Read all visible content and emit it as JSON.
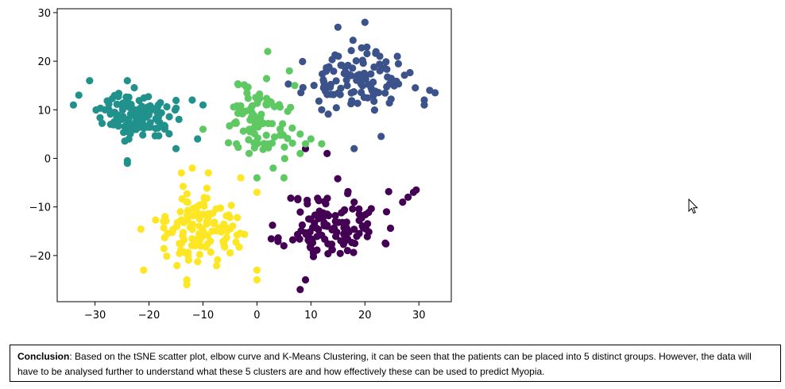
{
  "chart_data": {
    "type": "scatter",
    "title": "",
    "xlabel": "",
    "ylabel": "",
    "xlim": [
      -37,
      36
    ],
    "ylim": [
      -29.5,
      30.8
    ],
    "xticks": [
      -30,
      -20,
      -10,
      0,
      10,
      20,
      30
    ],
    "yticks": [
      -20,
      -10,
      0,
      10,
      20,
      30
    ],
    "xtick_labels": [
      "−30",
      "−20",
      "−10",
      "0",
      "10",
      "20",
      "30"
    ],
    "ytick_labels": [
      "−20",
      "−10",
      "0",
      "10",
      "20",
      "30"
    ],
    "grid": false,
    "series": [
      {
        "color": "#440154",
        "center": [
          14,
          -14
        ],
        "spread": [
          7.5,
          6.0
        ],
        "count": 120,
        "seed": 11,
        "extra": [
          [
            27,
            -9
          ],
          [
            28,
            -8
          ],
          [
            29,
            -7
          ],
          [
            29.5,
            -6.5
          ],
          [
            9,
            -25
          ],
          [
            8,
            -27
          ],
          [
            9,
            2
          ],
          [
            13,
            1
          ],
          [
            18,
            -9
          ],
          [
            24,
            -11
          ]
        ]
      },
      {
        "color": "#3b528b",
        "center": [
          18,
          16
        ],
        "spread": [
          7.5,
          4.5
        ],
        "count": 110,
        "seed": 23,
        "extra": [
          [
            20,
            28
          ],
          [
            15,
            27
          ],
          [
            32,
            14
          ],
          [
            31,
            12
          ],
          [
            31,
            11
          ],
          [
            33,
            13.5
          ],
          [
            26,
            21
          ],
          [
            18,
            2
          ],
          [
            23,
            4.5
          ],
          [
            12,
            10
          ]
        ]
      },
      {
        "color": "#21918c",
        "center": [
          -22,
          9
        ],
        "spread": [
          5.5,
          3.8
        ],
        "count": 120,
        "seed": 37,
        "extra": [
          [
            -34,
            11
          ],
          [
            -33,
            13
          ],
          [
            -24,
            16
          ],
          [
            -24,
            -0.5
          ],
          [
            -24,
            -1
          ],
          [
            -15,
            2
          ],
          [
            -11,
            4
          ],
          [
            -12,
            12
          ],
          [
            -10,
            11
          ],
          [
            -31,
            16
          ]
        ]
      },
      {
        "color": "#5ec962",
        "center": [
          0,
          8
        ],
        "spread": [
          5.5,
          6.5
        ],
        "count": 90,
        "seed": 51,
        "extra": [
          [
            2,
            22
          ],
          [
            6,
            18
          ],
          [
            7,
            15
          ],
          [
            8,
            5
          ],
          [
            10,
            4
          ],
          [
            12,
            3
          ],
          [
            -10,
            6
          ],
          [
            0,
            -4
          ],
          [
            3,
            -2
          ],
          [
            5,
            -4
          ],
          [
            8,
            1
          ],
          [
            9,
            3
          ]
        ]
      },
      {
        "color": "#fde725",
        "center": [
          -11,
          -15
        ],
        "spread": [
          6.0,
          5.8
        ],
        "count": 120,
        "seed": 67,
        "extra": [
          [
            -21,
            -23
          ],
          [
            -13,
            -25
          ],
          [
            -13,
            -26
          ],
          [
            0,
            -23
          ],
          [
            0,
            -25
          ],
          [
            -3,
            -4
          ],
          [
            -12,
            -2
          ],
          [
            -9,
            -3
          ],
          [
            0,
            -7
          ],
          [
            -14,
            -3
          ]
        ]
      }
    ]
  },
  "conclusion": {
    "label": "Conclusion",
    "text": ": Based on the tSNE scatter plot, elbow curve and K-Means Clustering, it can be seen that the patients can be placed into 5 distinct groups. However, the data will have to be analysed further to understand what these 5 clusters are and how effectively these can be used to predict Myopia."
  }
}
